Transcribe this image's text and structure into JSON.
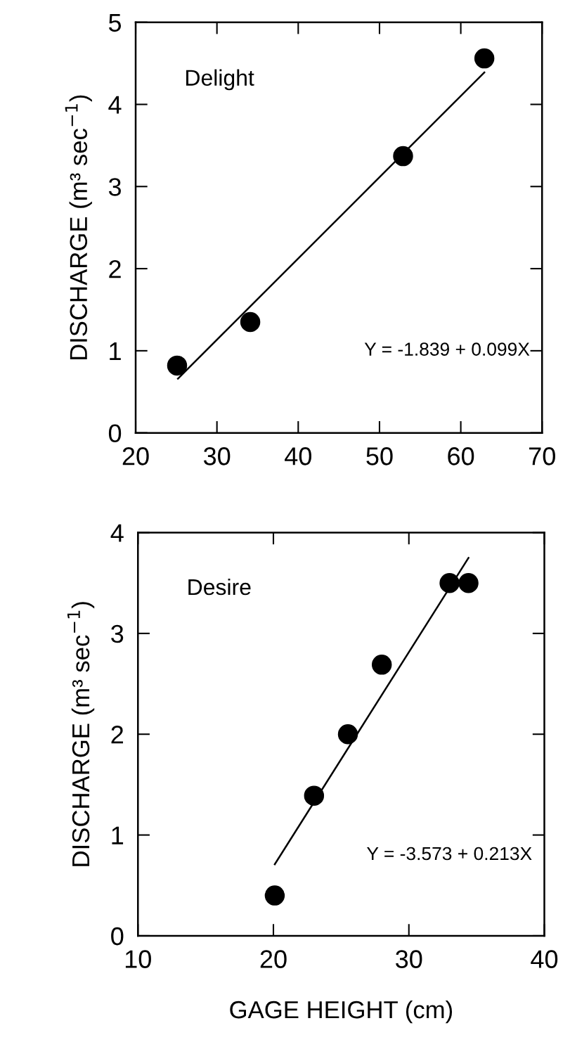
{
  "chart_data": [
    {
      "type": "scatter",
      "ylabel": "DISCHARGE (m³ sec$^{−1}$)",
      "annotations": [
        "Delight",
        "Y = -1.839 + 0.099X"
      ],
      "x": [
        25.1,
        34.1,
        52.9,
        62.9
      ],
      "xlim": [
        20,
        70
      ],
      "xticks": [
        20,
        30,
        40,
        50,
        60,
        70
      ],
      "ylim": [
        0,
        5
      ],
      "yticks": [
        0,
        1,
        2,
        3,
        4,
        5
      ],
      "grid": false,
      "series": [
        {
          "color": "#000000",
          "marker": "circle",
          "values": [
            0.82,
            1.35,
            3.37,
            4.56
          ]
        },
        {
          "type": "line",
          "color": "#000000",
          "marker": "none",
          "line_style": "solid",
          "x": [
            25.2,
            62.9
          ],
          "values": [
            0.66,
            4.39
          ]
        }
      ]
    },
    {
      "type": "scatter",
      "xlabel": "GAGE HEIGHT (cm)",
      "ylabel": "DISCHARGE (m³ sec$^{−1}$)",
      "annotations": [
        "Desire",
        "Y = -3.573 + 0.213X"
      ],
      "x": [
        20.1,
        23.0,
        25.5,
        28.0,
        33.0,
        34.4
      ],
      "xlim": [
        10,
        40
      ],
      "xticks": [
        10,
        20,
        30,
        40
      ],
      "ylim": [
        0,
        4
      ],
      "yticks": [
        0,
        1,
        2,
        3,
        4
      ],
      "grid": false,
      "series": [
        {
          "color": "#000000",
          "marker": "circle",
          "values": [
            0.4,
            1.39,
            2.0,
            2.69,
            3.5,
            3.5
          ]
        },
        {
          "type": "line",
          "color": "#000000",
          "marker": "none",
          "line_style": "solid",
          "x": [
            20.1,
            34.4
          ],
          "values": [
            0.71,
            3.75
          ]
        }
      ]
    }
  ]
}
